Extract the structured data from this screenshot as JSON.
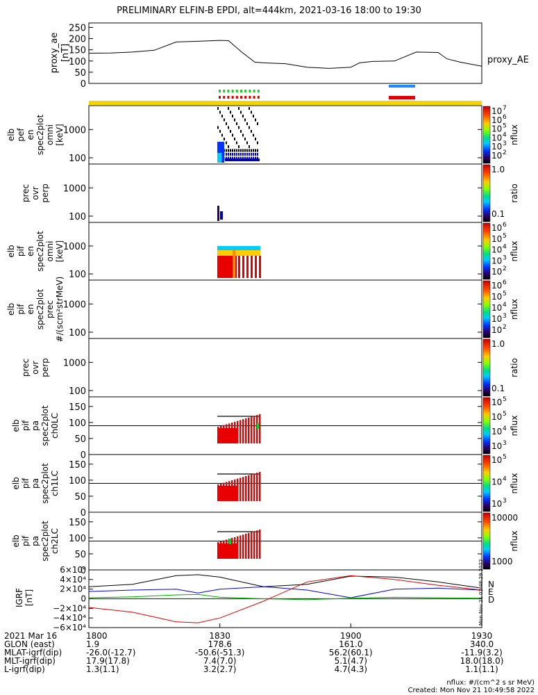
{
  "title": "PRELIMINARY ELFIN-B EPDI, alt=444km, 2021-03-16 18:00 to 19:30",
  "chart_data": [
    {
      "type": "line",
      "ylabel": "proxy_ae [nT]",
      "legend": "proxy_AE",
      "yticks": [
        "250",
        "200",
        "150",
        "100",
        "50",
        "0"
      ],
      "ylim": [
        0,
        270
      ],
      "x_minutes": [
        0,
        5,
        10,
        15,
        20,
        25,
        30,
        32,
        35,
        38,
        40,
        45,
        50,
        55,
        60,
        62,
        65,
        70,
        75,
        80,
        82,
        85,
        90
      ],
      "values": [
        135,
        136,
        140,
        148,
        185,
        188,
        192,
        191,
        140,
        95,
        92,
        88,
        72,
        67,
        72,
        92,
        98,
        100,
        140,
        138,
        110,
        95,
        77
      ]
    },
    {
      "type": "heatmap",
      "ylabel": "elb pef en spec2plot omni [keV]",
      "yticks": [
        "1000",
        "100"
      ],
      "colorbar_label": "nflux",
      "colorbar_ticks": [
        "10",
        "10",
        "10",
        "10",
        "10",
        "10"
      ],
      "colorbar_exponents": [
        "7",
        "6",
        "5",
        "4",
        "3",
        "2"
      ]
    },
    {
      "type": "heatmap",
      "ylabel": "prec ovr perp",
      "yticks": [
        "1000",
        "100"
      ],
      "colorbar_label": "ratio",
      "colorbar_ticks": [
        "1.0",
        "0.1"
      ]
    },
    {
      "type": "heatmap",
      "ylabel": "elb pif en spec2plot omni [keV]",
      "yticks": [
        "1000",
        "100"
      ],
      "colorbar_label": "nflux",
      "colorbar_ticks": [
        "10",
        "10",
        "10",
        "10",
        "10"
      ],
      "colorbar_exponents": [
        "6",
        "5",
        "4",
        "3",
        "2"
      ]
    },
    {
      "type": "heatmap",
      "ylabel": "elb pif en spec2plot prec #/(scm²strMeV)",
      "yticks": [
        "1000",
        "100"
      ],
      "colorbar_label": "nflux",
      "colorbar_ticks": [
        "10",
        "10",
        "10",
        "10",
        "10"
      ],
      "colorbar_exponents": [
        "6",
        "5",
        "4",
        "3",
        "2"
      ]
    },
    {
      "type": "heatmap",
      "ylabel": "prec ovr perp",
      "yticks": [
        "1000",
        "100"
      ],
      "colorbar_label": "ratio",
      "colorbar_ticks": [
        "1.0",
        "0.1"
      ]
    },
    {
      "type": "heatmap",
      "ylabel": "elb pif pa spec2plot ch0LC",
      "yticks": [
        "150",
        "100",
        "50",
        "0"
      ],
      "colorbar_label": "nflux",
      "colorbar_ticks": [
        "10",
        "10",
        "10",
        "10"
      ],
      "colorbar_exponents": [
        "5",
        "5",
        "4",
        "3"
      ]
    },
    {
      "type": "heatmap",
      "ylabel": "elb pif pa spec2plot ch1LC",
      "yticks": [
        "150",
        "100",
        "50",
        "0"
      ],
      "colorbar_label": "nflux",
      "colorbar_ticks": [
        "10",
        "10",
        "10"
      ],
      "colorbar_exponents": [
        "5",
        "4",
        "3"
      ]
    },
    {
      "type": "heatmap",
      "ylabel": "elb pif pa spec2plot ch2LC",
      "yticks": [
        "150",
        "100",
        "50",
        "0"
      ],
      "colorbar_label": "nflux",
      "colorbar_ticks": [
        "10000",
        "1000"
      ]
    },
    {
      "type": "line",
      "ylabel": "IGRF [nT]",
      "yticks": [
        "6×10⁴",
        "4×10⁴",
        "2×10⁴",
        "0",
        "−2×10⁴",
        "−4×10⁴",
        "−6×10⁴"
      ],
      "ylim": [
        -60000,
        60000
      ],
      "legend": [
        "N",
        "E",
        "D"
      ],
      "stamp": "Mon Nov 21 02:48:29 2022",
      "x_minutes": [
        0,
        10,
        20,
        25,
        30,
        40,
        50,
        60,
        70,
        80,
        90
      ],
      "series": [
        {
          "color": "#000000",
          "values": [
            25000,
            30000,
            48000,
            50000,
            45000,
            25000,
            30000,
            47000,
            45000,
            35000,
            22000
          ]
        },
        {
          "color": "#0000cc",
          "values": [
            15000,
            18000,
            20000,
            12000,
            20000,
            25000,
            18000,
            2000,
            20000,
            22000,
            18000
          ]
        },
        {
          "color": "#00aa00",
          "values": [
            2000,
            4000,
            8000,
            9000,
            3000,
            0,
            -2000,
            1000,
            3000,
            2000,
            1000
          ]
        },
        {
          "color": "#dd0000",
          "values": [
            -18000,
            -28000,
            -48000,
            -50000,
            -40000,
            -5000,
            35000,
            48000,
            40000,
            28000,
            18000
          ]
        }
      ]
    }
  ],
  "xaxis": {
    "rows": [
      {
        "label": "2021 Mar 16",
        "values": [
          "1800",
          "1830",
          "1900",
          "1930"
        ]
      },
      {
        "label": "GLON (east)",
        "values": [
          "1.9",
          "178.6",
          "161.0",
          "340.0"
        ]
      },
      {
        "label": "MLAT-igrf(dip)",
        "values": [
          "-26.0(-12.7)",
          "-50.6(-51.3)",
          "56.2(60.1)",
          "-11.9(3.2)"
        ]
      },
      {
        "label": "MLT-igrf(dip)",
        "values": [
          "17.9(17.8)",
          "7.4(7.0)",
          "5.1(4.7)",
          "18.0(18.0)"
        ]
      },
      {
        "label": "L-igrf(dip)",
        "values": [
          "1.3(1.1)",
          "3.2(2.7)",
          "4.7(4.3)",
          "1.1(1.1)"
        ]
      }
    ]
  },
  "footer": {
    "units": "nflux: #/(cm^2 s sr MeV)",
    "created": "Created: Mon Nov 21 10:49:58 2022"
  }
}
